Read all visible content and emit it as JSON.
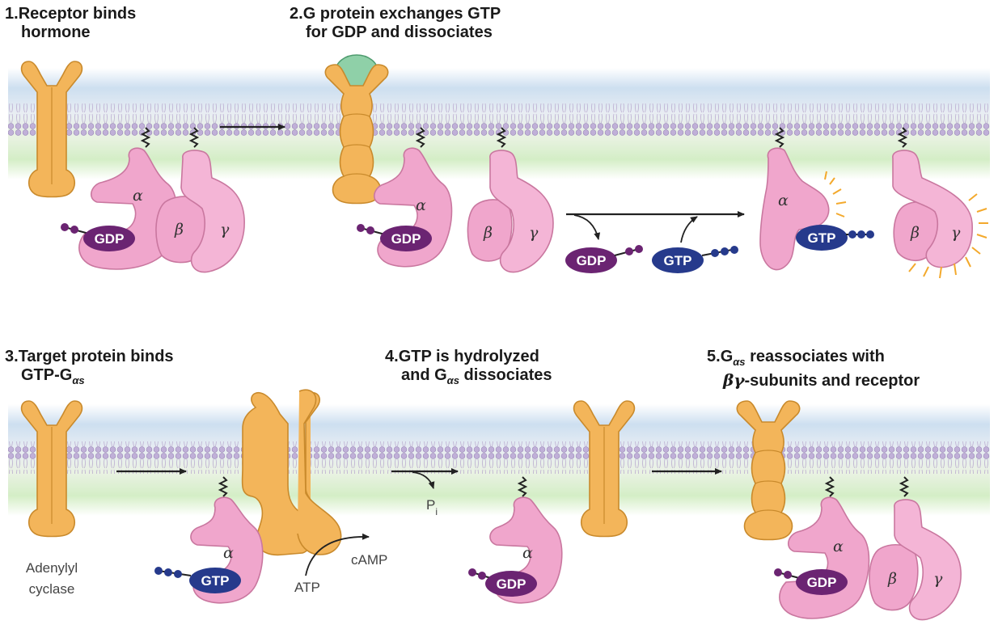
{
  "steps": [
    {
      "number": "1.",
      "line1": "Receptor binds",
      "line2": "hormone"
    },
    {
      "number": "2.",
      "line1": "G protein exchanges GTP",
      "line2": "for GDP and dissociates"
    },
    {
      "number": "3.",
      "line1": "Target protein binds",
      "line2_prefix": "GTP-G",
      "line2_sub": "αs",
      "line2_suffix": ""
    },
    {
      "number": "4.",
      "line1": "GTP is hydrolyzed",
      "line2_prefix": "and G",
      "line2_sub": "αs",
      "line2_suffix": " dissociates"
    },
    {
      "number": "5.",
      "line1_prefix": "G",
      "line1_sub": "αs",
      "line1_suffix": " reassociates with",
      "line2_greek": "βγ",
      "line2_suffix": "-subunits and receptor"
    }
  ],
  "labels": {
    "alpha": "α",
    "beta": "β",
    "gamma": "γ",
    "gdp": "GDP",
    "gtp": "GTP",
    "atp": "ATP",
    "camp": "cAMP",
    "pi": "P",
    "pi_sub": "i",
    "adenylyl_line1": "Adenylyl",
    "adenylyl_line2": "cyclase"
  },
  "colors": {
    "receptor": "#f3b55a",
    "receptor_stroke": "#c98a2c",
    "subunit": "#f0a6cc",
    "subunit_stroke": "#c9779f",
    "gdp": "#6b2472",
    "gtp": "#263a8c",
    "hormone": "#8fd0a8",
    "membrane_top": "#cfe0f0",
    "membrane_bottom": "#d6efc9",
    "lipid_head": "#b9a6d2"
  }
}
